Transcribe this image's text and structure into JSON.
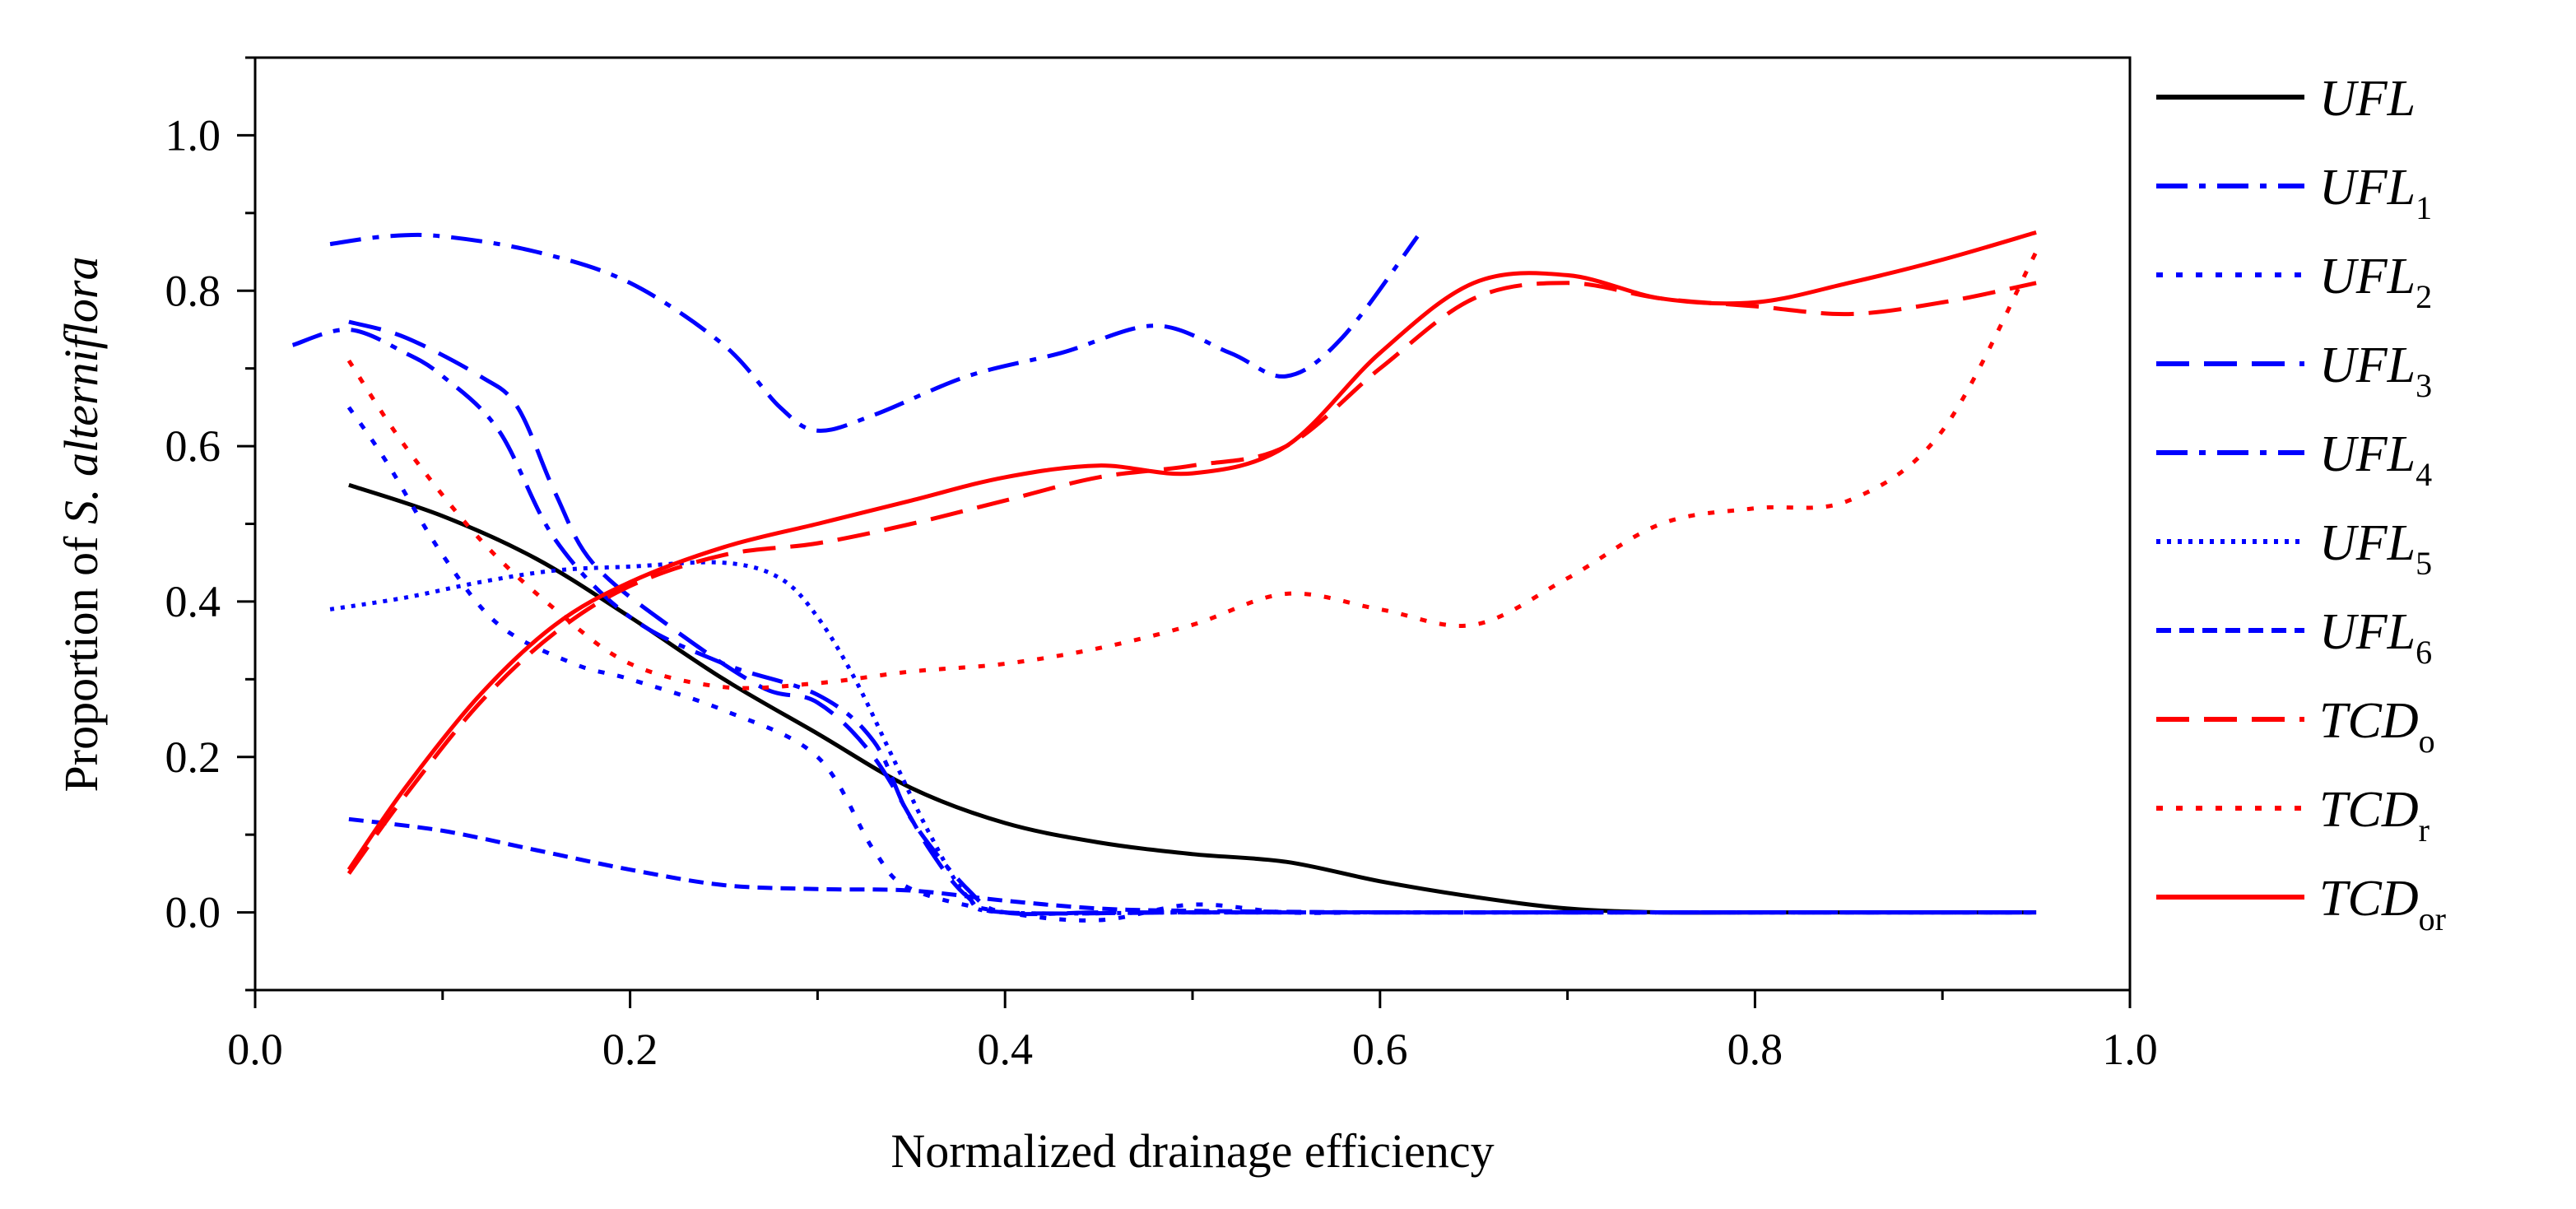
{
  "chart_data": {
    "type": "line",
    "title": "",
    "xlabel": "Normalized drainage efficiency",
    "ylabel_prefix": "Proportion of ",
    "ylabel_species": "S. alterniflora",
    "xlim": [
      0.0,
      1.0
    ],
    "ylim": [
      -0.1,
      1.1
    ],
    "x_ticks": [
      0.0,
      0.2,
      0.4,
      0.6,
      0.8,
      1.0
    ],
    "x_tick_labels": [
      "0.0",
      "0.2",
      "0.4",
      "0.6",
      "0.8",
      "1.0"
    ],
    "y_ticks": [
      0.0,
      0.2,
      0.4,
      0.6,
      0.8,
      1.0
    ],
    "y_tick_labels": [
      "0.0",
      "0.2",
      "0.4",
      "0.6",
      "0.8",
      "1.0"
    ],
    "legend_position": "right",
    "series": [
      {
        "name": "UFL",
        "base": "UFL",
        "sub": "",
        "color": "#000000",
        "dash": "solid",
        "points": [
          [
            0.05,
            0.55
          ],
          [
            0.1,
            0.51
          ],
          [
            0.15,
            0.455
          ],
          [
            0.2,
            0.38
          ],
          [
            0.25,
            0.3
          ],
          [
            0.3,
            0.23
          ],
          [
            0.35,
            0.16
          ],
          [
            0.4,
            0.115
          ],
          [
            0.45,
            0.09
          ],
          [
            0.5,
            0.075
          ],
          [
            0.55,
            0.065
          ],
          [
            0.6,
            0.04
          ],
          [
            0.65,
            0.02
          ],
          [
            0.7,
            0.005
          ],
          [
            0.75,
            0.0
          ],
          [
            0.8,
            0.0
          ],
          [
            0.85,
            0.0
          ],
          [
            0.9,
            0.0
          ],
          [
            0.95,
            0.0
          ]
        ]
      },
      {
        "name": "UFL1",
        "base": "UFL",
        "sub": "1",
        "color": "#0000ff",
        "dash": "dashdot",
        "points": [
          [
            0.02,
            0.73
          ],
          [
            0.05,
            0.75
          ],
          [
            0.08,
            0.72
          ],
          [
            0.1,
            0.69
          ],
          [
            0.13,
            0.62
          ],
          [
            0.16,
            0.48
          ],
          [
            0.2,
            0.38
          ],
          [
            0.25,
            0.32
          ],
          [
            0.3,
            0.28
          ],
          [
            0.33,
            0.22
          ],
          [
            0.35,
            0.12
          ],
          [
            0.38,
            0.03
          ],
          [
            0.4,
            0.0
          ],
          [
            0.45,
            0.0
          ],
          [
            0.5,
            0.0
          ],
          [
            0.6,
            0.0
          ],
          [
            0.7,
            0.0
          ],
          [
            0.8,
            0.0
          ],
          [
            0.95,
            0.0
          ]
        ]
      },
      {
        "name": "UFL2",
        "base": "UFL",
        "sub": "2",
        "color": "#0000ff",
        "dash": "dotted",
        "points": [
          [
            0.05,
            0.65
          ],
          [
            0.07,
            0.58
          ],
          [
            0.1,
            0.46
          ],
          [
            0.13,
            0.37
          ],
          [
            0.17,
            0.32
          ],
          [
            0.2,
            0.3
          ],
          [
            0.25,
            0.26
          ],
          [
            0.3,
            0.2
          ],
          [
            0.33,
            0.08
          ],
          [
            0.35,
            0.03
          ],
          [
            0.4,
            0.0
          ],
          [
            0.45,
            -0.01
          ],
          [
            0.5,
            0.01
          ],
          [
            0.55,
            0.0
          ],
          [
            0.6,
            0.0
          ],
          [
            0.7,
            0.0
          ],
          [
            0.8,
            0.0
          ],
          [
            0.95,
            0.0
          ]
        ]
      },
      {
        "name": "UFL3",
        "base": "UFL",
        "sub": "3",
        "color": "#0000ff",
        "dash": "dashed",
        "points": [
          [
            0.05,
            0.76
          ],
          [
            0.08,
            0.74
          ],
          [
            0.12,
            0.69
          ],
          [
            0.14,
            0.65
          ],
          [
            0.16,
            0.54
          ],
          [
            0.18,
            0.45
          ],
          [
            0.22,
            0.37
          ],
          [
            0.27,
            0.29
          ],
          [
            0.3,
            0.27
          ],
          [
            0.33,
            0.2
          ],
          [
            0.36,
            0.08
          ],
          [
            0.38,
            0.02
          ],
          [
            0.4,
            0.0
          ],
          [
            0.5,
            0.0
          ],
          [
            0.6,
            0.0
          ],
          [
            0.7,
            0.0
          ],
          [
            0.8,
            0.0
          ],
          [
            0.95,
            0.0
          ]
        ]
      },
      {
        "name": "UFL4",
        "base": "UFL",
        "sub": "4",
        "color": "#0000ff",
        "dash": "dashdot",
        "points": [
          [
            0.04,
            0.86
          ],
          [
            0.07,
            0.87
          ],
          [
            0.1,
            0.87
          ],
          [
            0.15,
            0.85
          ],
          [
            0.2,
            0.81
          ],
          [
            0.25,
            0.73
          ],
          [
            0.28,
            0.65
          ],
          [
            0.3,
            0.62
          ],
          [
            0.33,
            0.64
          ],
          [
            0.38,
            0.69
          ],
          [
            0.43,
            0.72
          ],
          [
            0.48,
            0.755
          ],
          [
            0.52,
            0.72
          ],
          [
            0.55,
            0.69
          ],
          [
            0.58,
            0.74
          ],
          [
            0.62,
            0.87
          ]
        ]
      },
      {
        "name": "UFL5",
        "base": "UFL",
        "sub": "5",
        "color": "#0000ff",
        "dash": "dotted2",
        "points": [
          [
            0.04,
            0.39
          ],
          [
            0.08,
            0.405
          ],
          [
            0.12,
            0.425
          ],
          [
            0.16,
            0.44
          ],
          [
            0.2,
            0.445
          ],
          [
            0.25,
            0.45
          ],
          [
            0.28,
            0.43
          ],
          [
            0.3,
            0.38
          ],
          [
            0.32,
            0.3
          ],
          [
            0.34,
            0.2
          ],
          [
            0.36,
            0.1
          ],
          [
            0.38,
            0.02
          ],
          [
            0.4,
            0.0
          ],
          [
            0.5,
            0.0
          ],
          [
            0.6,
            0.0
          ],
          [
            0.7,
            0.0
          ],
          [
            0.8,
            0.0
          ],
          [
            0.95,
            0.0
          ]
        ]
      },
      {
        "name": "UFL6",
        "base": "UFL",
        "sub": "6",
        "color": "#0000ff",
        "dash": "shortdash",
        "points": [
          [
            0.05,
            0.12
          ],
          [
            0.1,
            0.105
          ],
          [
            0.15,
            0.08
          ],
          [
            0.2,
            0.055
          ],
          [
            0.25,
            0.035
          ],
          [
            0.3,
            0.03
          ],
          [
            0.35,
            0.028
          ],
          [
            0.4,
            0.015
          ],
          [
            0.45,
            0.005
          ],
          [
            0.5,
            0.002
          ],
          [
            0.6,
            0.0
          ],
          [
            0.7,
            0.0
          ],
          [
            0.8,
            0.0
          ],
          [
            0.95,
            0.0
          ]
        ]
      },
      {
        "name": "TCDo",
        "base": "TCD",
        "sub": "o",
        "color": "#ff0000",
        "dash": "dashed",
        "points": [
          [
            0.05,
            0.05
          ],
          [
            0.08,
            0.15
          ],
          [
            0.12,
            0.27
          ],
          [
            0.16,
            0.36
          ],
          [
            0.2,
            0.42
          ],
          [
            0.25,
            0.46
          ],
          [
            0.3,
            0.475
          ],
          [
            0.35,
            0.5
          ],
          [
            0.4,
            0.53
          ],
          [
            0.45,
            0.56
          ],
          [
            0.5,
            0.575
          ],
          [
            0.55,
            0.6
          ],
          [
            0.6,
            0.7
          ],
          [
            0.65,
            0.79
          ],
          [
            0.7,
            0.81
          ],
          [
            0.75,
            0.79
          ],
          [
            0.8,
            0.78
          ],
          [
            0.85,
            0.77
          ],
          [
            0.9,
            0.785
          ],
          [
            0.95,
            0.81
          ]
        ]
      },
      {
        "name": "TCDr",
        "base": "TCD",
        "sub": "r",
        "color": "#ff0000",
        "dash": "dotted",
        "points": [
          [
            0.05,
            0.71
          ],
          [
            0.08,
            0.6
          ],
          [
            0.12,
            0.48
          ],
          [
            0.16,
            0.39
          ],
          [
            0.2,
            0.32
          ],
          [
            0.25,
            0.29
          ],
          [
            0.3,
            0.295
          ],
          [
            0.35,
            0.31
          ],
          [
            0.4,
            0.32
          ],
          [
            0.45,
            0.34
          ],
          [
            0.5,
            0.37
          ],
          [
            0.55,
            0.41
          ],
          [
            0.6,
            0.39
          ],
          [
            0.65,
            0.37
          ],
          [
            0.7,
            0.43
          ],
          [
            0.75,
            0.5
          ],
          [
            0.8,
            0.52
          ],
          [
            0.85,
            0.53
          ],
          [
            0.9,
            0.62
          ],
          [
            0.95,
            0.85
          ]
        ]
      },
      {
        "name": "TCDor",
        "base": "TCD",
        "sub": "or",
        "color": "#ff0000",
        "dash": "solid",
        "points": [
          [
            0.05,
            0.055
          ],
          [
            0.08,
            0.16
          ],
          [
            0.12,
            0.28
          ],
          [
            0.16,
            0.37
          ],
          [
            0.2,
            0.425
          ],
          [
            0.25,
            0.47
          ],
          [
            0.3,
            0.5
          ],
          [
            0.35,
            0.53
          ],
          [
            0.4,
            0.56
          ],
          [
            0.45,
            0.575
          ],
          [
            0.5,
            0.565
          ],
          [
            0.55,
            0.6
          ],
          [
            0.6,
            0.72
          ],
          [
            0.65,
            0.81
          ],
          [
            0.7,
            0.82
          ],
          [
            0.75,
            0.79
          ],
          [
            0.8,
            0.785
          ],
          [
            0.85,
            0.81
          ],
          [
            0.9,
            0.84
          ],
          [
            0.95,
            0.875
          ]
        ]
      }
    ]
  }
}
